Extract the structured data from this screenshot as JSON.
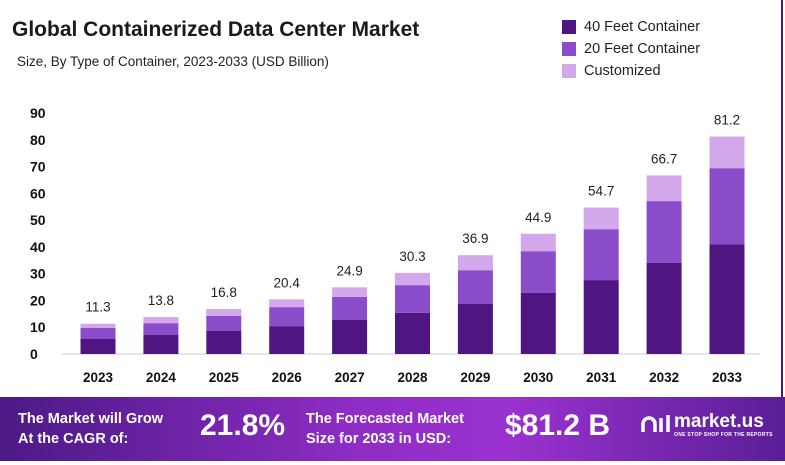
{
  "chart_data": {
    "type": "bar",
    "stacked": true,
    "title": "Global Containerized Data Center Market",
    "subtitle": "Size, By Type of Container, 2023-2033 (USD Billion)",
    "categories": [
      "2023",
      "2024",
      "2025",
      "2026",
      "2027",
      "2028",
      "2029",
      "2030",
      "2031",
      "2032",
      "2033"
    ],
    "series": [
      {
        "name": "40 Feet Container",
        "color": "#4f1682",
        "values": [
          5.6,
          7.1,
          8.7,
          10.4,
          12.7,
          15.4,
          18.8,
          22.9,
          27.6,
          34.1,
          41.0
        ]
      },
      {
        "name": "20 Feet Container",
        "color": "#8a4cc9",
        "values": [
          4.2,
          4.4,
          5.5,
          7.1,
          8.6,
          10.3,
          12.5,
          15.5,
          19.0,
          23.0,
          28.4
        ]
      },
      {
        "name": "Customized",
        "color": "#d2a8ea",
        "values": [
          1.5,
          2.3,
          2.6,
          2.9,
          3.6,
          4.6,
          5.6,
          6.5,
          8.1,
          9.6,
          11.8
        ]
      }
    ],
    "totals": [
      "11.3",
      "13.8",
      "16.8",
      "20.4",
      "24.9",
      "30.3",
      "36.9",
      "44.9",
      "54.7",
      "66.7",
      "81.2"
    ],
    "yticks": [
      "0",
      "10",
      "20",
      "30",
      "40",
      "50",
      "60",
      "70",
      "80",
      "90"
    ],
    "ylim": [
      0,
      90
    ],
    "grid": false,
    "legend": "top-right"
  },
  "banner": {
    "cagr_label_1": "The Market will Grow",
    "cagr_label_2": "At the CAGR of:",
    "cagr_value": "21.8%",
    "forecast_label_1": "The Forecasted Market",
    "forecast_label_2": "Size for 2033 in USD:",
    "forecast_value": "$81.2 B",
    "logo_name": "market.us",
    "logo_tagline": "ONE STOP SHOP FOR THE REPORTS"
  }
}
